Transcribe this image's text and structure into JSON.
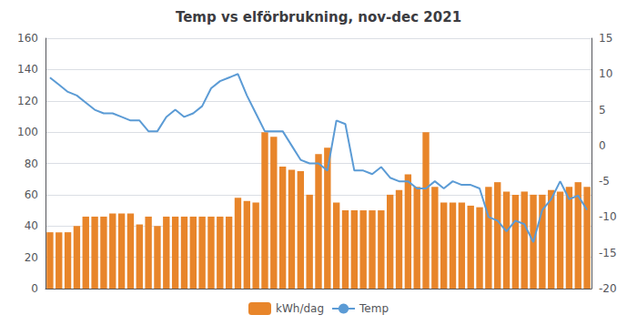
{
  "chart_data": {
    "type": "bar",
    "title": "Temp vs elförbrukning, nov-dec 2021",
    "categories": [
      null,
      null,
      null,
      null,
      null,
      null,
      null,
      null,
      null,
      null,
      null,
      null,
      null,
      null,
      null,
      null,
      null,
      null,
      null,
      null,
      null,
      null,
      null,
      null,
      null,
      null,
      null,
      null,
      null,
      null,
      null,
      null,
      null,
      null,
      null,
      null,
      null,
      null,
      null,
      null,
      null,
      null,
      null,
      null,
      null,
      null,
      null,
      null,
      null,
      null,
      null,
      null,
      null,
      null,
      null,
      null,
      null,
      null,
      null,
      null,
      null
    ],
    "series": [
      {
        "name": "kWh/dag",
        "type": "bar",
        "color": "#E8852A",
        "values": [
          36,
          36,
          36,
          40,
          46,
          46,
          46,
          48,
          48,
          48,
          41,
          46,
          40,
          46,
          46,
          46,
          46,
          46,
          46,
          46,
          46,
          58,
          56,
          55,
          100,
          97,
          78,
          76,
          75,
          60,
          86,
          90,
          55,
          50,
          50,
          50,
          50,
          50,
          60,
          63,
          73,
          65,
          100,
          65,
          55,
          55,
          55,
          53,
          52,
          65,
          68,
          62,
          60,
          62,
          60,
          60,
          63,
          62,
          65,
          68,
          65
        ]
      },
      {
        "name": "Temp",
        "type": "line",
        "color": "#5B9BD5",
        "axis": "y2",
        "values": [
          9.5,
          8.5,
          7.5,
          7.0,
          6.0,
          5.0,
          4.5,
          4.5,
          4.0,
          3.5,
          3.5,
          2.0,
          2.0,
          4.0,
          5.0,
          4.0,
          4.5,
          5.5,
          8.0,
          9.0,
          9.5,
          10.0,
          7.0,
          4.5,
          2.0,
          2.0,
          2.0,
          0.0,
          -2.0,
          -2.5,
          -2.5,
          -3.5,
          3.5,
          3.0,
          -3.5,
          -3.5,
          -4.0,
          -3.0,
          -4.5,
          -5.0,
          -5.0,
          -6.0,
          -6.0,
          -5.0,
          -6.0,
          -5.0,
          -5.5,
          -5.5,
          -6.0,
          -10.0,
          -10.5,
          -12.0,
          -10.5,
          -11.0,
          -13.5,
          -9.0,
          -7.5,
          -5.0,
          -7.5,
          -7.0,
          -9.0
        ]
      }
    ],
    "ylim": [
      0,
      160
    ],
    "yticks": [
      0,
      20,
      40,
      60,
      80,
      100,
      120,
      140,
      160
    ],
    "y2lim": [
      -20,
      15
    ],
    "y2ticks": [
      -20,
      -15,
      -10,
      -5,
      0,
      5,
      10,
      15
    ],
    "grid": true,
    "legend": "bottom",
    "tick_labels": "y"
  }
}
